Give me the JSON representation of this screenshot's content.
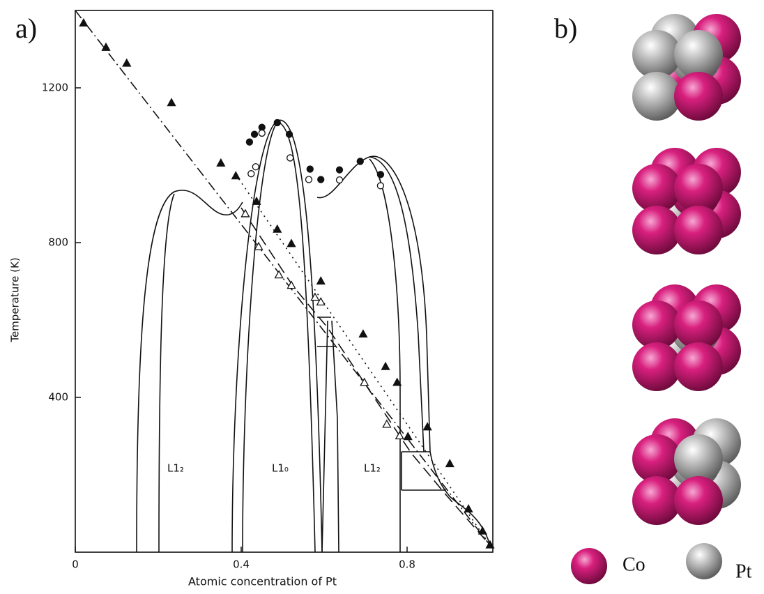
{
  "panel_a_label": "a)",
  "panel_b_label": "b)",
  "chart_data": {
    "type": "scatter",
    "xlabel": "Atomic concentration of Pt",
    "ylabel": "Temperature (K)",
    "xlim": [
      0,
      1
    ],
    "ylim": [
      0,
      1400
    ],
    "xticks": [
      0,
      0.4,
      0.8
    ],
    "yticks": [
      400,
      800,
      1200
    ],
    "annotations": [
      "L1₂",
      "L1₀",
      "L1₂"
    ],
    "series": [
      {
        "marker": "triangle",
        "filled": true,
        "color": "#111",
        "x": [
          0.02,
          0.074,
          0.124,
          0.232,
          0.351,
          0.387,
          0.437,
          0.487,
          0.521,
          0.592,
          0.694,
          0.748,
          0.776,
          0.802,
          0.849,
          0.903,
          0.948,
          0.982,
          1.0
        ],
        "values": [
          1367,
          1304,
          1263,
          1161,
          1005,
          972,
          906,
          834,
          797,
          700,
          563,
          479,
          438,
          298,
          323,
          228,
          111,
          54,
          18
        ]
      },
      {
        "marker": "triangle",
        "filled": false,
        "color": "#111",
        "x": [
          0.41,
          0.442,
          0.491,
          0.521,
          0.578,
          0.592,
          0.697,
          0.751,
          0.782
        ],
        "values": [
          874,
          789,
          716,
          689,
          658,
          646,
          438,
          330,
          300
        ]
      },
      {
        "marker": "circle",
        "filled": true,
        "color": "#111",
        "x": [
          0.42,
          0.432,
          0.45,
          0.487,
          0.516,
          0.566,
          0.592,
          0.637,
          0.687,
          0.736
        ],
        "values": [
          1060,
          1080,
          1098,
          1110,
          1080,
          990,
          963,
          988,
          1010,
          976
        ]
      },
      {
        "marker": "circle",
        "filled": false,
        "color": "#111",
        "x": [
          0.424,
          0.435,
          0.45,
          0.518,
          0.563,
          0.637,
          0.736
        ],
        "values": [
          978,
          996,
          1083,
          1019,
          963,
          962,
          947
        ]
      }
    ]
  },
  "legend": {
    "co": "Co",
    "pt": "Pt"
  }
}
